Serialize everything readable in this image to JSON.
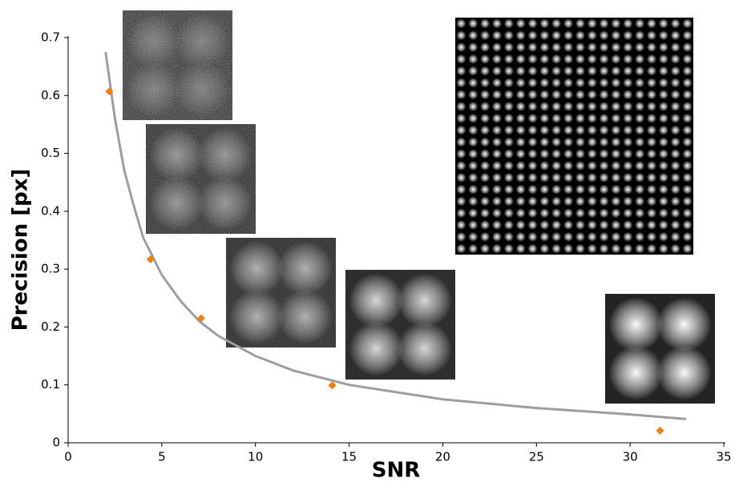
{
  "chart_data": {
    "type": "scatter",
    "x_label": "SNR",
    "y_label": "Precision [px]",
    "xlim": [
      0,
      35
    ],
    "xticks": [
      0,
      5,
      10,
      15,
      20,
      25,
      30,
      35
    ],
    "ylim": [
      0,
      0.7
    ],
    "yticks": [
      0,
      0.1,
      0.2,
      0.3,
      0.4,
      0.5,
      0.6,
      0.7
    ],
    "grid": false,
    "series": [
      {
        "type": "scatter",
        "color": "#f07f09",
        "x": [
          2.2,
          4.4,
          7.1,
          14.1,
          31.6
        ],
        "values": [
          0.607,
          0.317,
          0.215,
          0.099,
          0.021
        ]
      },
      {
        "type": "line",
        "color": "#9e9e9e",
        "x": [
          2,
          2.5,
          3,
          3.5,
          4,
          5,
          6,
          7,
          8,
          10,
          12,
          15,
          20,
          25,
          30,
          33
        ],
        "values": [
          0.675,
          0.56,
          0.47,
          0.41,
          0.355,
          0.29,
          0.245,
          0.21,
          0.185,
          0.15,
          0.125,
          0.1,
          0.075,
          0.06,
          0.049,
          0.041
        ]
      }
    ]
  }
}
